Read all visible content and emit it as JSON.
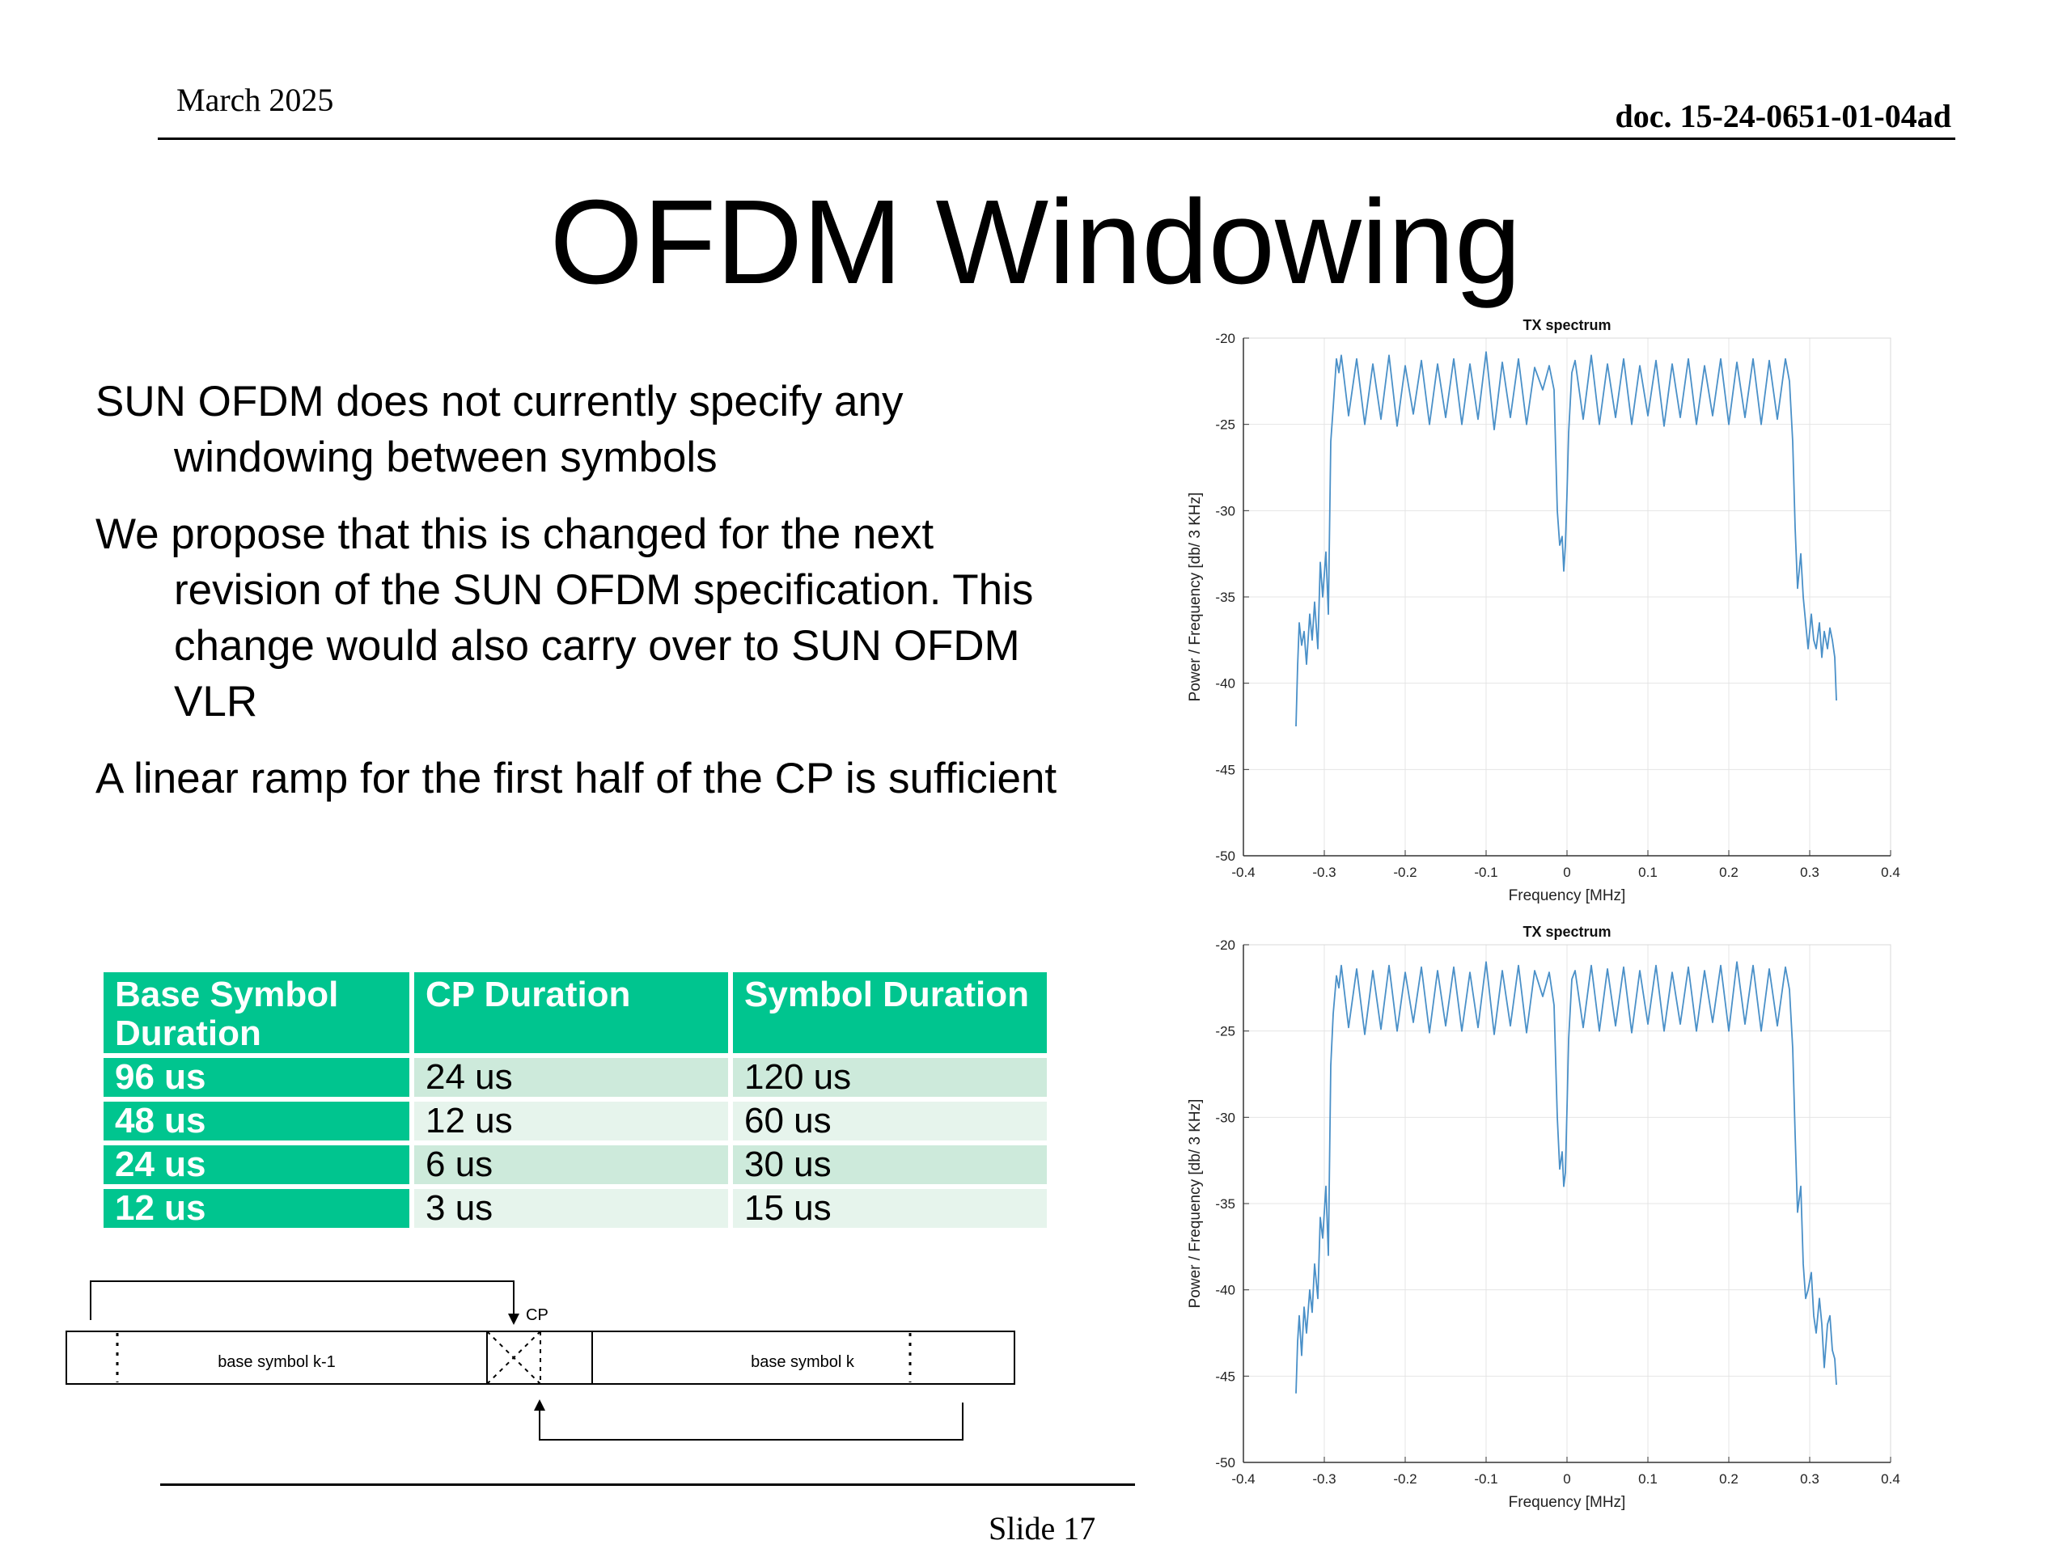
{
  "header": {
    "date": "March 2025",
    "doc_id": "doc. 15-24-0651-01-04ad"
  },
  "title": "OFDM Windowing",
  "bullets": [
    "SUN OFDM does not currently specify any windowing between symbols",
    "We propose that this is changed for the next revision of the SUN OFDM specification. This change would also carry over to SUN OFDM VLR",
    "A linear ramp for the first half of the CP is sufficient"
  ],
  "table": {
    "headers": [
      "Base Symbol Duration",
      "CP Duration",
      "Symbol Duration"
    ],
    "rows": [
      [
        "96 us",
        "24 us",
        "120 us"
      ],
      [
        "48 us",
        "12 us",
        "60 us"
      ],
      [
        "24 us",
        "6 us",
        "30 us"
      ],
      [
        "12 us",
        "3 us",
        "15 us"
      ]
    ]
  },
  "diagram": {
    "cp_label": "CP",
    "symbol_prev": "base symbol k-1",
    "symbol_next": "base symbol k"
  },
  "footer": {
    "slide": "Slide 17"
  },
  "colors": {
    "table_header": "#00c58f",
    "row_even": "#cdeadb",
    "row_odd": "#e6f4ec",
    "trace": "#4a90c8"
  },
  "chart_data": [
    {
      "type": "line",
      "title": "TX spectrum",
      "xlabel": "Frequency [MHz]",
      "ylabel": "Power / Frequency [db/  3 KHz]",
      "xlim": [
        -0.4,
        0.4
      ],
      "ylim": [
        -50,
        -20
      ],
      "xticks": [
        "-0.4",
        "-0.3",
        "-0.2",
        "-0.1",
        "0",
        "0.1",
        "0.2",
        "0.3",
        "0.4"
      ],
      "yticks": [
        "-20",
        "-25",
        "-30",
        "-35",
        "-40",
        "-45",
        "-50"
      ],
      "grid": true,
      "series": [
        {
          "x": [
            -0.335,
            -0.333,
            -0.331,
            -0.328,
            -0.325,
            -0.322,
            -0.318,
            -0.315,
            -0.312,
            -0.308,
            -0.305,
            -0.302,
            -0.298,
            -0.295,
            -0.292,
            -0.289,
            -0.285,
            -0.282,
            -0.279,
            -0.27,
            -0.26,
            -0.25,
            -0.24,
            -0.23,
            -0.22,
            -0.21,
            -0.2,
            -0.19,
            -0.18,
            -0.17,
            -0.16,
            -0.15,
            -0.14,
            -0.13,
            -0.12,
            -0.11,
            -0.1,
            -0.09,
            -0.08,
            -0.07,
            -0.06,
            -0.05,
            -0.04,
            -0.03,
            -0.022,
            -0.016,
            -0.012,
            -0.009,
            -0.006,
            -0.004,
            -0.002,
            0.0,
            0.002,
            0.006,
            0.01,
            0.02,
            0.03,
            0.04,
            0.05,
            0.06,
            0.07,
            0.08,
            0.09,
            0.1,
            0.11,
            0.12,
            0.13,
            0.14,
            0.15,
            0.16,
            0.17,
            0.18,
            0.19,
            0.2,
            0.21,
            0.22,
            0.23,
            0.24,
            0.25,
            0.26,
            0.27,
            0.275,
            0.279,
            0.282,
            0.285,
            0.289,
            0.292,
            0.295,
            0.298,
            0.302,
            0.305,
            0.308,
            0.312,
            0.315,
            0.318,
            0.322,
            0.325,
            0.328,
            0.331,
            0.333
          ],
          "y": [
            -42.5,
            -39.0,
            -36.5,
            -37.8,
            -37.0,
            -38.9,
            -36.0,
            -37.5,
            -35.3,
            -38.0,
            -33.0,
            -35.0,
            -32.4,
            -36.0,
            -26.0,
            -24.0,
            -21.2,
            -22.0,
            -21.0,
            -24.5,
            -21.2,
            -25.0,
            -21.5,
            -24.7,
            -21.0,
            -25.1,
            -21.6,
            -24.4,
            -21.3,
            -25.0,
            -21.5,
            -24.6,
            -21.2,
            -25.0,
            -21.5,
            -24.7,
            -20.8,
            -25.3,
            -21.4,
            -24.6,
            -21.2,
            -25.0,
            -21.7,
            -23.0,
            -21.6,
            -23.0,
            -30.0,
            -32.0,
            -31.5,
            -33.5,
            -32.0,
            -29.0,
            -25.5,
            -22.0,
            -21.3,
            -24.7,
            -21.0,
            -25.0,
            -21.5,
            -24.6,
            -21.2,
            -25.0,
            -21.6,
            -24.5,
            -21.3,
            -25.1,
            -21.5,
            -24.6,
            -21.2,
            -25.0,
            -21.6,
            -24.5,
            -21.2,
            -25.0,
            -21.4,
            -24.6,
            -21.2,
            -25.0,
            -21.3,
            -24.7,
            -21.2,
            -22.5,
            -26.0,
            -31.0,
            -34.5,
            -32.5,
            -35.0,
            -36.5,
            -38.0,
            -36.0,
            -37.5,
            -38.0,
            -36.5,
            -38.5,
            -37.0,
            -38.0,
            -36.8,
            -37.5,
            -38.5,
            -41.0
          ]
        }
      ]
    },
    {
      "type": "line",
      "title": "TX spectrum",
      "xlabel": "Frequency [MHz]",
      "ylabel": "Power / Frequency [db/  3 KHz]",
      "xlim": [
        -0.4,
        0.4
      ],
      "ylim": [
        -50,
        -20
      ],
      "xticks": [
        "-0.4",
        "-0.3",
        "-0.2",
        "-0.1",
        "0",
        "0.1",
        "0.2",
        "0.3",
        "0.4"
      ],
      "yticks": [
        "-20",
        "-25",
        "-30",
        "-35",
        "-40",
        "-45",
        "-50"
      ],
      "grid": true,
      "series": [
        {
          "x": [
            -0.335,
            -0.333,
            -0.331,
            -0.328,
            -0.325,
            -0.322,
            -0.318,
            -0.315,
            -0.312,
            -0.308,
            -0.305,
            -0.302,
            -0.298,
            -0.295,
            -0.292,
            -0.289,
            -0.285,
            -0.282,
            -0.279,
            -0.27,
            -0.26,
            -0.25,
            -0.24,
            -0.23,
            -0.22,
            -0.21,
            -0.2,
            -0.19,
            -0.18,
            -0.17,
            -0.16,
            -0.15,
            -0.14,
            -0.13,
            -0.12,
            -0.11,
            -0.1,
            -0.09,
            -0.08,
            -0.07,
            -0.06,
            -0.05,
            -0.04,
            -0.03,
            -0.022,
            -0.016,
            -0.012,
            -0.009,
            -0.006,
            -0.004,
            -0.002,
            0.0,
            0.002,
            0.006,
            0.01,
            0.02,
            0.03,
            0.04,
            0.05,
            0.06,
            0.07,
            0.08,
            0.09,
            0.1,
            0.11,
            0.12,
            0.13,
            0.14,
            0.15,
            0.16,
            0.17,
            0.18,
            0.19,
            0.2,
            0.21,
            0.22,
            0.23,
            0.24,
            0.25,
            0.26,
            0.27,
            0.275,
            0.279,
            0.282,
            0.285,
            0.289,
            0.292,
            0.295,
            0.298,
            0.302,
            0.305,
            0.308,
            0.312,
            0.315,
            0.318,
            0.322,
            0.325,
            0.328,
            0.331,
            0.333
          ],
          "y": [
            -46.0,
            -43.0,
            -41.5,
            -43.8,
            -41.0,
            -42.5,
            -40.0,
            -41.3,
            -38.5,
            -40.5,
            -35.8,
            -37.0,
            -34.0,
            -38.0,
            -27.0,
            -24.0,
            -21.8,
            -22.5,
            -21.2,
            -24.8,
            -21.4,
            -25.2,
            -21.5,
            -24.9,
            -21.2,
            -25.0,
            -21.6,
            -24.5,
            -21.3,
            -25.1,
            -21.5,
            -24.7,
            -21.3,
            -25.0,
            -21.6,
            -24.8,
            -21.0,
            -25.2,
            -21.5,
            -24.7,
            -21.2,
            -25.1,
            -21.5,
            -23.0,
            -21.6,
            -23.5,
            -30.0,
            -33.0,
            -32.0,
            -34.0,
            -33.2,
            -29.5,
            -25.5,
            -22.0,
            -21.5,
            -24.8,
            -21.2,
            -25.0,
            -21.4,
            -24.7,
            -21.3,
            -25.1,
            -21.5,
            -24.6,
            -21.2,
            -25.0,
            -21.6,
            -24.6,
            -21.3,
            -25.0,
            -21.5,
            -24.5,
            -21.2,
            -25.0,
            -21.0,
            -24.6,
            -21.2,
            -25.0,
            -21.4,
            -24.7,
            -21.3,
            -22.6,
            -26.0,
            -31.0,
            -35.5,
            -34.0,
            -38.5,
            -40.5,
            -40.0,
            -39.0,
            -41.5,
            -42.5,
            -40.5,
            -42.0,
            -44.5,
            -42.0,
            -41.5,
            -43.5,
            -44.0,
            -45.5
          ]
        }
      ]
    }
  ]
}
